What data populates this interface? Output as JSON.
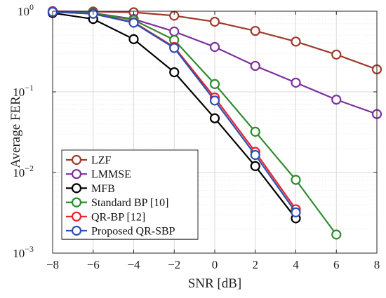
{
  "chart_data": {
    "type": "line",
    "title": "",
    "xlabel": "SNR [dB]",
    "ylabel": "Average FER",
    "xlim": [
      -8,
      8
    ],
    "ylim": [
      0.001,
      1
    ],
    "yscale": "log",
    "grid": true,
    "legend_position": "bottom-left",
    "x_ticks": [
      "−8",
      "−6",
      "−4",
      "−2",
      "0",
      "2",
      "4",
      "6",
      "8"
    ],
    "y_ticks": [
      {
        "base": "10",
        "exp": "−3"
      },
      {
        "base": "10",
        "exp": "−2"
      },
      {
        "base": "10",
        "exp": "−1"
      },
      {
        "base": "10",
        "exp": "0"
      }
    ],
    "series": [
      {
        "name": "LZF",
        "color": "#a0392b",
        "marker": "circle",
        "x": [
          -8,
          -6,
          -4,
          -2,
          0,
          2,
          4,
          6,
          8
        ],
        "y": [
          1.0,
          0.99,
          0.97,
          0.88,
          0.74,
          0.57,
          0.42,
          0.29,
          0.19
        ]
      },
      {
        "name": "LMMSE",
        "color": "#7f2f9e",
        "marker": "circle",
        "x": [
          -8,
          -6,
          -4,
          -2,
          0,
          2,
          4,
          6,
          8
        ],
        "y": [
          1.0,
          0.95,
          0.8,
          0.56,
          0.36,
          0.21,
          0.13,
          0.08,
          0.053
        ]
      },
      {
        "name": "MFB",
        "color": "#000000",
        "marker": "circle",
        "x": [
          -8,
          -6,
          -4,
          -2,
          0,
          2,
          4
        ],
        "y": [
          0.95,
          0.8,
          0.45,
          0.175,
          0.047,
          0.012,
          0.0027
        ]
      },
      {
        "name": "Standard BP [10]",
        "color": "#2e8b2e",
        "marker": "circle",
        "x": [
          -8,
          -6,
          -4,
          -2,
          0,
          2,
          4,
          6
        ],
        "y": [
          0.98,
          0.95,
          0.78,
          0.44,
          0.125,
          0.032,
          0.0081,
          0.0017
        ]
      },
      {
        "name": "QR-BP [12]",
        "color": "#e8212b",
        "marker": "circle",
        "x": [
          -8,
          -6,
          -4,
          -2,
          0,
          2,
          4
        ],
        "y": [
          0.98,
          0.93,
          0.73,
          0.36,
          0.085,
          0.018,
          0.0035
        ]
      },
      {
        "name": "Proposed QR-SBP",
        "color": "#2e4fb3",
        "marker": "circle",
        "x": [
          -8,
          -6,
          -4,
          -2,
          0,
          2,
          4
        ],
        "y": [
          0.98,
          0.93,
          0.72,
          0.35,
          0.078,
          0.0165,
          0.0032
        ]
      }
    ]
  }
}
